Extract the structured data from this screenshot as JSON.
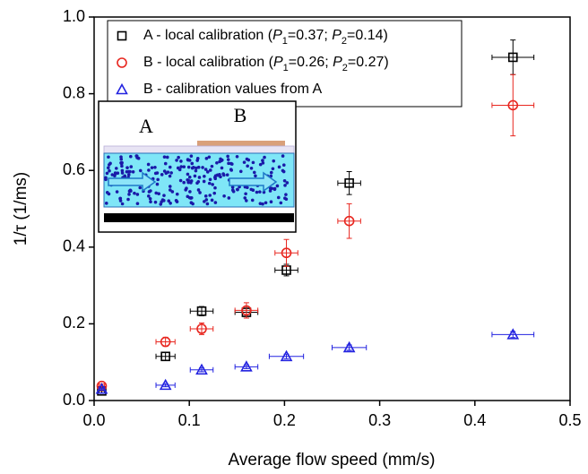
{
  "chart_data": {
    "type": "scatter",
    "x_label": "Average flow speed (mm/s)",
    "y_label": "1/τ (1/ms)",
    "xlim": [
      0,
      0.5
    ],
    "xticks": [
      {
        "value": 0,
        "label": "0.0"
      },
      0.1,
      0.2,
      0.3,
      0.4,
      0.5
    ],
    "ylim": [
      0,
      1
    ],
    "yticks": [
      {
        "value": 0,
        "label": "0.0"
      },
      0.2,
      0.4,
      0.6,
      0.8,
      {
        "value": 1,
        "label": "1.0"
      }
    ],
    "legend": "upper left",
    "annotations": [
      "A",
      "B"
    ],
    "series": [
      {
        "name": "A - local calibration (P1=0.37; P2=0.14)",
        "color": "#000000",
        "marker": "square",
        "x": [
          0.008,
          0.075,
          0.113,
          0.16,
          0.202,
          0.268,
          0.44
        ],
        "values": [
          0.025,
          0.115,
          0.233,
          0.23,
          0.34,
          0.567,
          0.895
        ],
        "xerr": [
          0.003,
          0.01,
          0.012,
          0.012,
          0.012,
          0.012,
          0.022
        ],
        "yerr": [
          0.005,
          0.01,
          0.012,
          0.015,
          0.015,
          0.03,
          0.045
        ]
      },
      {
        "name": "B - local calibration (P1=0.26; P2=0.27)",
        "color": "#e8261f",
        "marker": "circle",
        "x": [
          0.008,
          0.075,
          0.113,
          0.16,
          0.202,
          0.268,
          0.44
        ],
        "values": [
          0.038,
          0.153,
          0.187,
          0.235,
          0.385,
          0.468,
          0.77
        ],
        "xerr": [
          0.003,
          0.01,
          0.012,
          0.012,
          0.012,
          0.012,
          0.022
        ],
        "yerr": [
          0.005,
          0.012,
          0.015,
          0.02,
          0.035,
          0.045,
          0.08
        ]
      },
      {
        "name": "B - calibration values from A",
        "color": "#2323e0",
        "marker": "triangle",
        "x": [
          0.008,
          0.075,
          0.113,
          0.16,
          0.202,
          0.268,
          0.44
        ],
        "values": [
          0.03,
          0.04,
          0.08,
          0.088,
          0.115,
          0.138,
          0.172
        ],
        "xerr": [
          0.003,
          0.01,
          0.012,
          0.012,
          0.018,
          0.018,
          0.022
        ],
        "yerr": [
          0.003,
          0.004,
          0.005,
          0.005,
          0.006,
          0.007,
          0.008
        ]
      }
    ]
  }
}
